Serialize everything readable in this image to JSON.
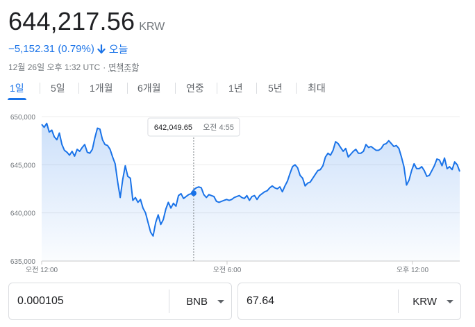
{
  "price": {
    "value": "644,217.56",
    "currency": "KRW"
  },
  "change": {
    "value": "−5,152.31 (0.79%)",
    "direction": "down",
    "period": "오늘",
    "color": "#1a73e8"
  },
  "meta": {
    "timestamp": "12월 26일 오후 1:32 UTC",
    "separator": "·",
    "disclaimer": "면책조항"
  },
  "tabs": [
    {
      "label": "1일",
      "active": true
    },
    {
      "label": "5일",
      "active": false
    },
    {
      "label": "1개월",
      "active": false
    },
    {
      "label": "6개월",
      "active": false
    },
    {
      "label": "연중",
      "active": false
    },
    {
      "label": "1년",
      "active": false
    },
    {
      "label": "5년",
      "active": false
    },
    {
      "label": "최대",
      "active": false
    }
  ],
  "chart_data": {
    "type": "area",
    "title": "",
    "xlabel": "",
    "ylabel": "",
    "ylim": [
      635000,
      650000
    ],
    "y_ticks": [
      "650,000",
      "645,000",
      "640,000",
      "635,000"
    ],
    "y_tick_values": [
      650000,
      645000,
      640000,
      635000
    ],
    "x_ticks": [
      {
        "label": "오전 12:00",
        "hour": 0
      },
      {
        "label": "오전 6:00",
        "hour": 6
      },
      {
        "label": "오후 12:00",
        "hour": 12
      }
    ],
    "x_range_hours": [
      0,
      13.53
    ],
    "series": [
      {
        "values": [
          649200,
          648900,
          649300,
          648400,
          648600,
          647900,
          647600,
          648300,
          647100,
          646500,
          646300,
          646000,
          646400,
          645900,
          646600,
          646400,
          646800,
          647100,
          646300,
          646200,
          646600,
          647800,
          648800,
          648700,
          647600,
          647100,
          647000,
          646600,
          645800,
          645100,
          643200,
          641600,
          643500,
          644900,
          643800,
          643600,
          641300,
          641600,
          641100,
          641400,
          640500,
          640000,
          639000,
          638000,
          637600,
          639000,
          639800,
          638800,
          639300,
          640400,
          641100,
          640500,
          641000,
          640700,
          641800,
          642000,
          641500,
          641700,
          641900,
          642000,
          642400,
          642600,
          642700,
          642600,
          641900,
          641600,
          641900,
          641800,
          641700,
          641200,
          641100,
          641200,
          641300,
          641400,
          641300,
          641400,
          641600,
          641700,
          641800,
          641600,
          641500,
          641800,
          641300,
          641700,
          641800,
          641400,
          641800,
          642000,
          642200,
          642300,
          642600,
          642800,
          642600,
          642500,
          642700,
          642200,
          642800,
          643300,
          644100,
          644800,
          645000,
          644700,
          643900,
          643600,
          642800,
          643100,
          643200,
          643600,
          644000,
          644400,
          644500,
          644900,
          645800,
          646200,
          646000,
          646500,
          647400,
          647200,
          646800,
          646400,
          646700,
          645800,
          646100,
          646400,
          646600,
          646200,
          646200,
          646400,
          647100,
          646800,
          646900,
          646700,
          646500,
          646500,
          646700,
          647100,
          647200,
          647500,
          647200,
          646900,
          647000,
          646700,
          645800,
          644800,
          642900,
          643400,
          644400,
          645100,
          644600,
          644600,
          644800,
          644400,
          643800,
          643900,
          644400,
          644900,
          645600,
          645500,
          644900,
          645700,
          644600,
          644800,
          644500,
          645300,
          645000,
          644300
        ],
        "color": "#1a73e8"
      }
    ],
    "tooltip": {
      "value": "642,049.65",
      "time": "오전 4:55",
      "hour": 4.92
    },
    "grid": true,
    "legend": "none"
  },
  "converter": {
    "from": {
      "value": "0.000105",
      "currency": "BNB"
    },
    "to": {
      "value": "67.64",
      "currency": "KRW"
    }
  }
}
